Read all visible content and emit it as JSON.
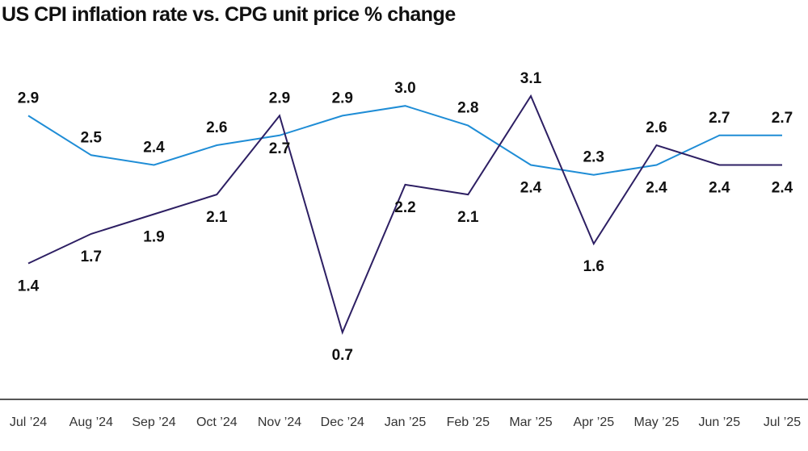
{
  "title": "US CPI inflation rate vs. CPG unit price % change",
  "chart_data": {
    "type": "line",
    "title": "US CPI inflation rate vs. CPG unit price % change",
    "xlabel": "",
    "ylabel": "",
    "categories": [
      "Jul  24",
      "Aug  24",
      "Sep  24",
      "Oct  24",
      "Nov  24",
      "Dec  24",
      "Jan  25",
      "Feb  25",
      "Mar  25",
      "Apr  25",
      "May  25",
      "Jun  25",
      "Jul  25"
    ],
    "tick_labels": [
      "Jul ’24",
      "Aug ’24",
      "Sep ’24",
      "Oct ’24",
      "Nov ’24",
      "Dec ’24",
      "Jan ’25",
      "Feb ’25",
      "Mar ’25",
      "Apr ’25",
      "May ’25",
      "Jun ’25",
      "Jul ’25"
    ],
    "series": [
      {
        "values": [
          2.9,
          2.5,
          2.4,
          2.6,
          2.7,
          2.9,
          3.0,
          2.8,
          2.4,
          2.3,
          2.4,
          2.7,
          2.7
        ],
        "color": "#1f8dd6"
      },
      {
        "values": [
          1.4,
          1.7,
          1.9,
          2.1,
          2.9,
          0.7,
          2.2,
          2.1,
          3.1,
          1.6,
          2.6,
          2.4,
          2.4
        ],
        "color": "#2d1f63"
      }
    ],
    "labels": [
      [
        "2.9",
        "2.5",
        "2.4",
        "2.6",
        "2.7",
        "2.9",
        "3.0",
        "2.8",
        "2.4",
        "2.3",
        "2.4",
        "2.7",
        "2.7"
      ],
      [
        "1.4",
        "1.7",
        "1.9",
        "2.1",
        "2.9",
        "0.7",
        "2.2",
        "2.1",
        "3.1",
        "1.6",
        "2.6",
        "2.4",
        "2.4"
      ]
    ],
    "ylim": [
      0,
      3.5
    ],
    "grid": false,
    "legend": "none"
  }
}
